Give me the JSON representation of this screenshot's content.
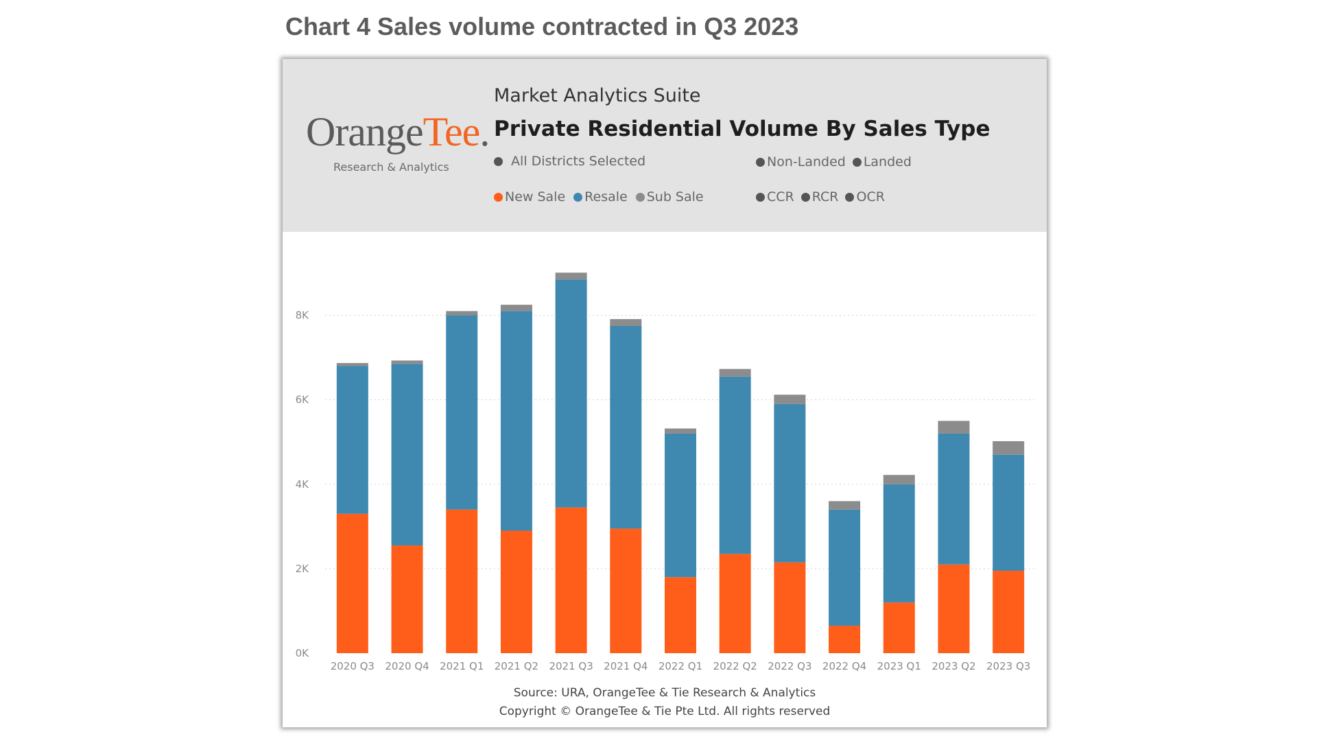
{
  "page": {
    "title": "Chart 4 Sales volume contracted in Q3 2023"
  },
  "header": {
    "logo_main": "Orange",
    "logo_accent": "Tee",
    "logo_sub": "Research & Analytics",
    "suite": "Market Analytics Suite",
    "title": "Private Residential Volume By Sales Type",
    "filter_all_districts": "All Districts Selected",
    "filter_non_landed": "Non-Landed",
    "filter_landed": "Landed",
    "filter_ccr": "CCR",
    "filter_rcr": "RCR",
    "filter_ocr": "OCR"
  },
  "footer": {
    "source": "Source: URA, OrangeTee & Tie Research & Analytics",
    "copyright": "Copyright © OrangeTee & Tie Pte Ltd. All rights reserved"
  },
  "colors": {
    "new_sale": "#ff5e1a",
    "resale": "#3f89b0",
    "sub_sale": "#8c8c8c",
    "neutral_dot": "#555555",
    "header_bg": "#e3e3e3"
  },
  "chart_data": {
    "type": "bar",
    "stacked": true,
    "title": "Private Residential Volume By Sales Type",
    "categories": [
      "2020 Q3",
      "2020 Q4",
      "2021 Q1",
      "2021 Q2",
      "2021 Q3",
      "2021 Q4",
      "2022 Q1",
      "2022 Q2",
      "2022 Q3",
      "2022 Q4",
      "2023 Q1",
      "2023 Q2",
      "2023 Q3"
    ],
    "series": [
      {
        "name": "New Sale",
        "color": "#ff5e1a",
        "values": [
          3300,
          2550,
          3400,
          2900,
          3450,
          2950,
          1800,
          2350,
          2150,
          650,
          1200,
          2100,
          1950
        ]
      },
      {
        "name": "Resale",
        "color": "#3f89b0",
        "values": [
          3500,
          4300,
          4600,
          5200,
          5400,
          4800,
          3400,
          4200,
          3750,
          2750,
          2800,
          3100,
          2750
        ]
      },
      {
        "name": "Sub Sale",
        "color": "#8c8c8c",
        "values": [
          70,
          80,
          100,
          150,
          160,
          160,
          120,
          180,
          220,
          200,
          220,
          300,
          320
        ]
      }
    ],
    "y_ticks": [
      {
        "value": 0,
        "label": "0K"
      },
      {
        "value": 2000,
        "label": "2K"
      },
      {
        "value": 4000,
        "label": "4K"
      },
      {
        "value": 6000,
        "label": "6K"
      },
      {
        "value": 8000,
        "label": "8K"
      }
    ],
    "ylim": [
      0,
      9000
    ],
    "grid": true,
    "legend_position": "top"
  }
}
